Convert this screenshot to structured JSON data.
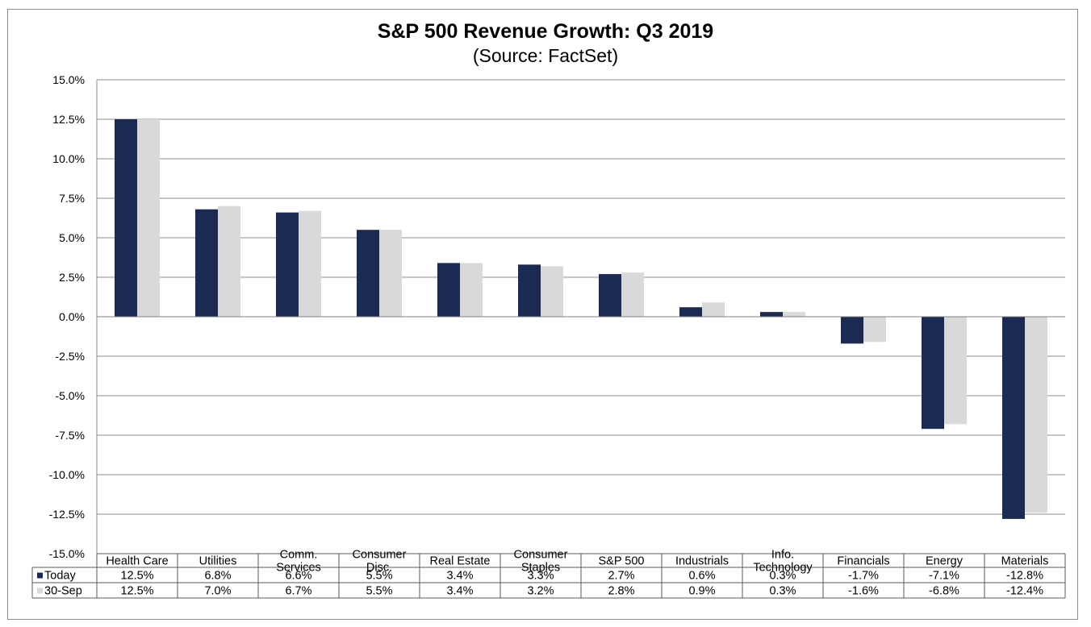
{
  "chart_data": {
    "type": "bar",
    "title": "S&P 500 Revenue Growth: Q3 2019",
    "subtitle": "(Source: FactSet)",
    "categories": [
      [
        "Health Care"
      ],
      [
        "Utilities"
      ],
      [
        "Comm.",
        "Services"
      ],
      [
        "Consumer",
        "Disc."
      ],
      [
        "Real Estate"
      ],
      [
        "Consumer",
        "Staples"
      ],
      [
        "S&P 500"
      ],
      [
        "Industrials"
      ],
      [
        "Info.",
        "Technology"
      ],
      [
        "Financials"
      ],
      [
        "Energy"
      ],
      [
        "Materials"
      ]
    ],
    "series": [
      {
        "name": "Today",
        "color": "#1b2a52",
        "values": [
          12.5,
          6.8,
          6.6,
          5.5,
          3.4,
          3.3,
          2.7,
          0.6,
          0.3,
          -1.7,
          -7.1,
          -12.8
        ],
        "labels": [
          "12.5%",
          "6.8%",
          "6.6%",
          "5.5%",
          "3.4%",
          "3.3%",
          "2.7%",
          "0.6%",
          "0.3%",
          "-1.7%",
          "-7.1%",
          "-12.8%"
        ]
      },
      {
        "name": "30-Sep",
        "color": "#d9d9d9",
        "values": [
          12.5,
          7.0,
          6.7,
          5.5,
          3.4,
          3.2,
          2.8,
          0.9,
          0.3,
          -1.6,
          -6.8,
          -12.4
        ],
        "labels": [
          "12.5%",
          "7.0%",
          "6.7%",
          "5.5%",
          "3.4%",
          "3.2%",
          "2.8%",
          "0.9%",
          "0.3%",
          "-1.6%",
          "-6.8%",
          "-12.4%"
        ]
      }
    ],
    "ylim": [
      -15,
      15
    ],
    "yticks": [
      15,
      12.5,
      10,
      7.5,
      5,
      2.5,
      0,
      -2.5,
      -5,
      -7.5,
      -10,
      -12.5,
      -15
    ],
    "ytick_labels": [
      "15.0%",
      "12.5%",
      "10.0%",
      "7.5%",
      "5.0%",
      "2.5%",
      "0.0%",
      "-2.5%",
      "-5.0%",
      "-7.5%",
      "-10.0%",
      "-12.5%",
      "-15.0%"
    ],
    "grid": true,
    "legend": "data-table"
  }
}
